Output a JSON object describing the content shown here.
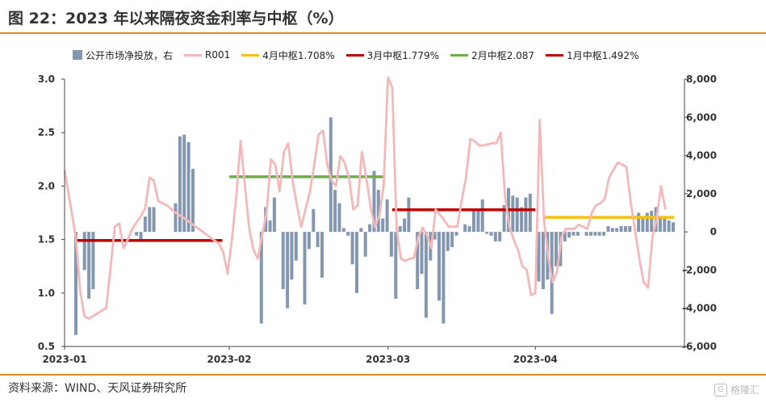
{
  "header": {
    "title": "图 22：2023 年以来隔夜资金利率与中枢（%）"
  },
  "footer": {
    "source": "资料来源：WIND、天风证券研究所",
    "watermark": "格隆汇",
    "watermark_icon": "G"
  },
  "chart_data": {
    "type": "bar+line",
    "title": "图 22：2023 年以来隔夜资金利率与中枢（%）",
    "x_labels": [
      "2023-01",
      "2023-02",
      "2023-03",
      "2023-04"
    ],
    "y_left": {
      "min": 0.5,
      "max": 3.0,
      "ticks": [
        "0.5",
        "1.0",
        "1.5",
        "2.0",
        "2.5",
        "3.0"
      ]
    },
    "y_right": {
      "min": -6000,
      "max": 8000,
      "ticks": [
        "-6,000",
        "-4,000",
        "-2,000",
        "0",
        "2,000",
        "4,000",
        "6,000",
        "8,000"
      ]
    },
    "legend": [
      {
        "label": "公开市场净投放，右",
        "color": "#8497b0",
        "kind": "bar"
      },
      {
        "label": "R001",
        "color": "#f4b8b8",
        "kind": "line"
      },
      {
        "label": "4月中枢1.708%",
        "color": "#f4c20d",
        "kind": "line"
      },
      {
        "label": "3月中枢1.779%",
        "color": "#c00000",
        "kind": "line"
      },
      {
        "label": "2月中枢2.087",
        "color": "#70ad47",
        "kind": "line"
      },
      {
        "label": "1月中枢1.492%",
        "color": "#c00000",
        "kind": "line"
      }
    ],
    "bar_series": {
      "name": "公开市场净投放，右",
      "color": "#8497b0",
      "points": [
        [
          1.3,
          -5400
        ],
        [
          1.8,
          0
        ],
        [
          2.3,
          -2000
        ],
        [
          2.8,
          -3500
        ],
        [
          3.3,
          -3000
        ],
        [
          3.8,
          0
        ],
        [
          4.8,
          0
        ],
        [
          5.3,
          0
        ],
        [
          5.8,
          0
        ],
        [
          6.3,
          0
        ],
        [
          6.8,
          0
        ],
        [
          7.3,
          0
        ],
        [
          7.8,
          0
        ],
        [
          8.3,
          -200
        ],
        [
          8.8,
          -400
        ],
        [
          9.3,
          800
        ],
        [
          9.8,
          1300
        ],
        [
          10.3,
          1300
        ],
        [
          11.3,
          0
        ],
        [
          11.8,
          0
        ],
        [
          12.3,
          0
        ],
        [
          12.8,
          1500
        ],
        [
          13.3,
          5000
        ],
        [
          13.8,
          5100
        ],
        [
          14.3,
          4700
        ],
        [
          14.8,
          3300
        ],
        [
          22.7,
          -4800
        ],
        [
          23.2,
          1300
        ],
        [
          23.7,
          600
        ],
        [
          24.2,
          1800
        ],
        [
          25.2,
          -3000
        ],
        [
          25.7,
          -4000
        ],
        [
          26.2,
          -2500
        ],
        [
          26.7,
          -1500
        ],
        [
          27.7,
          -3800
        ],
        [
          28.2,
          -900
        ],
        [
          28.7,
          1200
        ],
        [
          29.2,
          -800
        ],
        [
          29.7,
          -2400
        ],
        [
          30.7,
          6000
        ],
        [
          31.2,
          2200
        ],
        [
          31.7,
          1500
        ],
        [
          32.2,
          200
        ],
        [
          32.7,
          -200
        ],
        [
          33.2,
          -1700
        ],
        [
          33.7,
          -3200
        ],
        [
          34.2,
          200
        ],
        [
          34.7,
          -1300
        ],
        [
          35.2,
          400
        ],
        [
          35.7,
          3200
        ],
        [
          36.2,
          2200
        ],
        [
          36.7,
          700
        ],
        [
          37.2,
          1700
        ],
        [
          37.7,
          -1300
        ],
        [
          38.2,
          -3500
        ],
        [
          38.7,
          300
        ],
        [
          39.2,
          700
        ],
        [
          39.7,
          1800
        ],
        [
          40.7,
          -3000
        ],
        [
          41.2,
          -2200
        ],
        [
          41.7,
          -4500
        ],
        [
          42.2,
          -1500
        ],
        [
          42.7,
          -400
        ],
        [
          43.2,
          -3600
        ],
        [
          43.7,
          -4800
        ],
        [
          44.2,
          -1000
        ],
        [
          44.7,
          -800
        ],
        [
          45.2,
          -200
        ],
        [
          46.2,
          400
        ],
        [
          46.7,
          300
        ],
        [
          47.2,
          1100
        ],
        [
          47.7,
          1100
        ],
        [
          48.2,
          1700
        ],
        [
          48.7,
          -100
        ],
        [
          49.2,
          -200
        ],
        [
          49.7,
          -500
        ],
        [
          50.2,
          -500
        ],
        [
          50.7,
          1400
        ],
        [
          51.2,
          2300
        ],
        [
          51.7,
          1900
        ],
        [
          52.2,
          1800
        ],
        [
          52.7,
          1300
        ],
        [
          53.2,
          1800
        ],
        [
          53.7,
          2000
        ],
        [
          54.7,
          -2600
        ],
        [
          55.2,
          -3000
        ],
        [
          55.7,
          -2500
        ],
        [
          56.2,
          -4300
        ],
        [
          56.7,
          -1800
        ],
        [
          57.2,
          -1800
        ],
        [
          57.7,
          -500
        ],
        [
          58.2,
          -300
        ],
        [
          58.7,
          -200
        ],
        [
          59.2,
          -200
        ],
        [
          60.2,
          -200
        ],
        [
          60.7,
          -200
        ],
        [
          61.2,
          -200
        ],
        [
          61.7,
          -200
        ],
        [
          62.2,
          -200
        ],
        [
          62.7,
          300
        ],
        [
          63.2,
          200
        ],
        [
          63.7,
          200
        ],
        [
          64.2,
          300
        ],
        [
          64.7,
          300
        ],
        [
          65.2,
          300
        ],
        [
          66.2,
          1000
        ],
        [
          66.7,
          800
        ],
        [
          67.2,
          1000
        ],
        [
          67.7,
          1100
        ],
        [
          68.2,
          1300
        ],
        [
          68.7,
          800
        ],
        [
          69.2,
          700
        ],
        [
          69.7,
          600
        ],
        [
          70.2,
          500
        ]
      ]
    },
    "line_series": {
      "name": "R001",
      "color": "#f4b8b8",
      "points": [
        [
          0,
          2.15
        ],
        [
          1.3,
          1.52
        ],
        [
          1.8,
          1.02
        ],
        [
          2.3,
          0.78
        ],
        [
          2.8,
          0.76
        ],
        [
          3.8,
          0.81
        ],
        [
          4.8,
          0.86
        ],
        [
          5.8,
          1.62
        ],
        [
          6.3,
          1.65
        ],
        [
          6.8,
          1.42
        ],
        [
          7.3,
          1.5
        ],
        [
          7.8,
          1.6
        ],
        [
          8.8,
          1.72
        ],
        [
          9.3,
          1.79
        ],
        [
          9.8,
          2.08
        ],
        [
          10.3,
          2.05
        ],
        [
          10.8,
          1.86
        ],
        [
          11.8,
          1.82
        ],
        [
          12.8,
          1.75
        ],
        [
          13.8,
          1.7
        ],
        [
          14.8,
          1.64
        ],
        [
          15.8,
          1.58
        ],
        [
          16.8,
          1.52
        ],
        [
          17.8,
          1.46
        ],
        [
          18.3,
          1.38
        ],
        [
          18.8,
          1.18
        ],
        [
          19.3,
          1.5
        ],
        [
          19.8,
          1.9
        ],
        [
          20.3,
          2.42
        ],
        [
          20.8,
          2.0
        ],
        [
          21.3,
          1.6
        ],
        [
          21.8,
          1.4
        ],
        [
          22.3,
          1.32
        ],
        [
          22.8,
          1.55
        ],
        [
          23.3,
          1.75
        ],
        [
          23.8,
          2.25
        ],
        [
          24.3,
          2.2
        ],
        [
          24.8,
          1.95
        ],
        [
          25.3,
          2.32
        ],
        [
          25.8,
          2.4
        ],
        [
          26.3,
          2.05
        ],
        [
          26.8,
          1.82
        ],
        [
          27.3,
          1.62
        ],
        [
          28.3,
          1.95
        ],
        [
          28.8,
          2.2
        ],
        [
          29.3,
          2.48
        ],
        [
          29.8,
          2.52
        ],
        [
          30.3,
          2.2
        ],
        [
          30.8,
          2.05
        ],
        [
          31.3,
          2.0
        ],
        [
          31.8,
          2.28
        ],
        [
          32.3,
          2.22
        ],
        [
          32.8,
          2.08
        ],
        [
          33.3,
          1.78
        ],
        [
          33.8,
          1.82
        ],
        [
          34.3,
          2.32
        ],
        [
          34.8,
          2.08
        ],
        [
          35.3,
          1.8
        ],
        [
          35.8,
          1.62
        ],
        [
          36.3,
          1.72
        ],
        [
          36.8,
          2.0
        ],
        [
          37.3,
          3.08
        ],
        [
          37.8,
          2.92
        ],
        [
          38.3,
          1.6
        ],
        [
          38.8,
          1.32
        ],
        [
          39.3,
          1.3
        ],
        [
          39.8,
          1.32
        ],
        [
          40.3,
          1.33
        ],
        [
          40.8,
          1.52
        ],
        [
          41.3,
          1.61
        ],
        [
          41.8,
          1.54
        ],
        [
          42.3,
          1.42
        ],
        [
          42.8,
          1.78
        ],
        [
          43.3,
          1.73
        ],
        [
          43.8,
          1.68
        ],
        [
          44.3,
          1.62
        ],
        [
          44.8,
          1.62
        ],
        [
          45.3,
          1.62
        ],
        [
          45.8,
          1.86
        ],
        [
          46.3,
          2.08
        ],
        [
          46.8,
          2.44
        ],
        [
          47.3,
          2.42
        ],
        [
          47.8,
          2.38
        ],
        [
          48.3,
          2.38
        ],
        [
          49.3,
          2.4
        ],
        [
          49.8,
          2.4
        ],
        [
          50.3,
          2.5
        ],
        [
          50.8,
          1.9
        ],
        [
          51.3,
          1.62
        ],
        [
          51.8,
          1.5
        ],
        [
          52.3,
          1.4
        ],
        [
          52.8,
          1.25
        ],
        [
          53.3,
          1.22
        ],
        [
          53.8,
          0.98
        ],
        [
          54.3,
          1.0
        ],
        [
          54.8,
          2.62
        ],
        [
          55.3,
          1.68
        ],
        [
          55.8,
          1.32
        ],
        [
          56.3,
          1.1
        ],
        [
          56.8,
          1.2
        ],
        [
          57.3,
          1.52
        ],
        [
          57.8,
          1.6
        ],
        [
          58.3,
          1.6
        ],
        [
          58.8,
          1.6
        ],
        [
          59.3,
          1.64
        ],
        [
          59.8,
          1.62
        ],
        [
          60.3,
          1.6
        ],
        [
          60.8,
          1.75
        ],
        [
          61.3,
          1.82
        ],
        [
          61.8,
          1.84
        ],
        [
          62.3,
          1.88
        ],
        [
          62.8,
          2.08
        ],
        [
          63.3,
          2.15
        ],
        [
          63.8,
          2.22
        ],
        [
          64.3,
          2.2
        ],
        [
          64.8,
          2.18
        ],
        [
          65.3,
          1.85
        ],
        [
          65.8,
          1.58
        ],
        [
          66.3,
          1.32
        ],
        [
          66.8,
          1.1
        ],
        [
          67.3,
          1.05
        ],
        [
          67.8,
          1.52
        ],
        [
          68.3,
          1.7
        ],
        [
          68.8,
          2.0
        ],
        [
          69.3,
          1.78
        ]
      ]
    },
    "x_domain": [
      0,
      71.5
    ],
    "x_label_positions": [
      0,
      19,
      37.3,
      54.3
    ],
    "centers": [
      {
        "label": "1月中枢1.492%",
        "value": 1.492,
        "x_start": 1.3,
        "x_end": 18.2,
        "color": "#c00000"
      },
      {
        "label": "2月中枢2.087",
        "value": 2.087,
        "x_start": 19.0,
        "x_end": 36.8,
        "color": "#70ad47"
      },
      {
        "label": "3月中枢1.779%",
        "value": 1.779,
        "x_start": 37.8,
        "x_end": 54.3,
        "color": "#c00000"
      },
      {
        "label": "4月中枢1.708%",
        "value": 1.708,
        "x_start": 55.3,
        "x_end": 70.3,
        "color": "#f4c20d"
      }
    ]
  }
}
